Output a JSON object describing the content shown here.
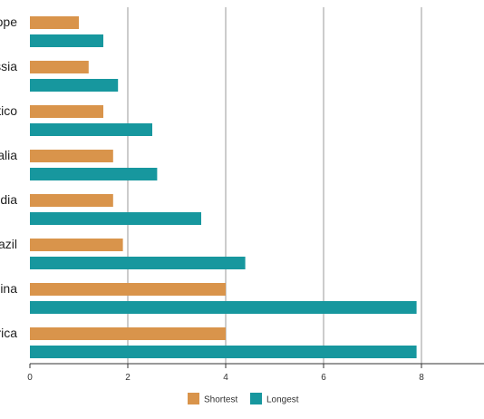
{
  "chart_data": {
    "type": "bar",
    "orientation": "horizontal",
    "categories": [
      "Europe",
      "Russia",
      "Mexico",
      "Australia",
      "India",
      "Brazil",
      "China",
      "America"
    ],
    "visible_category_labels": [
      "ope",
      "ssia",
      "tico",
      "alia",
      "dia",
      "azil",
      "nina",
      "rica"
    ],
    "series": [
      {
        "name": "Shortest",
        "color": "#D9944B",
        "values": [
          1.0,
          1.2,
          1.5,
          1.7,
          1.7,
          1.9,
          4.0,
          4.0
        ]
      },
      {
        "name": "Longest",
        "color": "#17979E",
        "values": [
          1.5,
          1.8,
          2.5,
          2.6,
          3.5,
          4.4,
          7.9,
          7.9
        ]
      }
    ],
    "xlim": [
      0,
      9.2
    ],
    "xticks": [
      0,
      2,
      4,
      6,
      8
    ],
    "xtick_labels": [
      "0",
      "2",
      "4",
      "6",
      "8"
    ],
    "grid": "vertical",
    "legend_position": "bottom",
    "title": "",
    "xlabel": "",
    "ylabel": ""
  }
}
